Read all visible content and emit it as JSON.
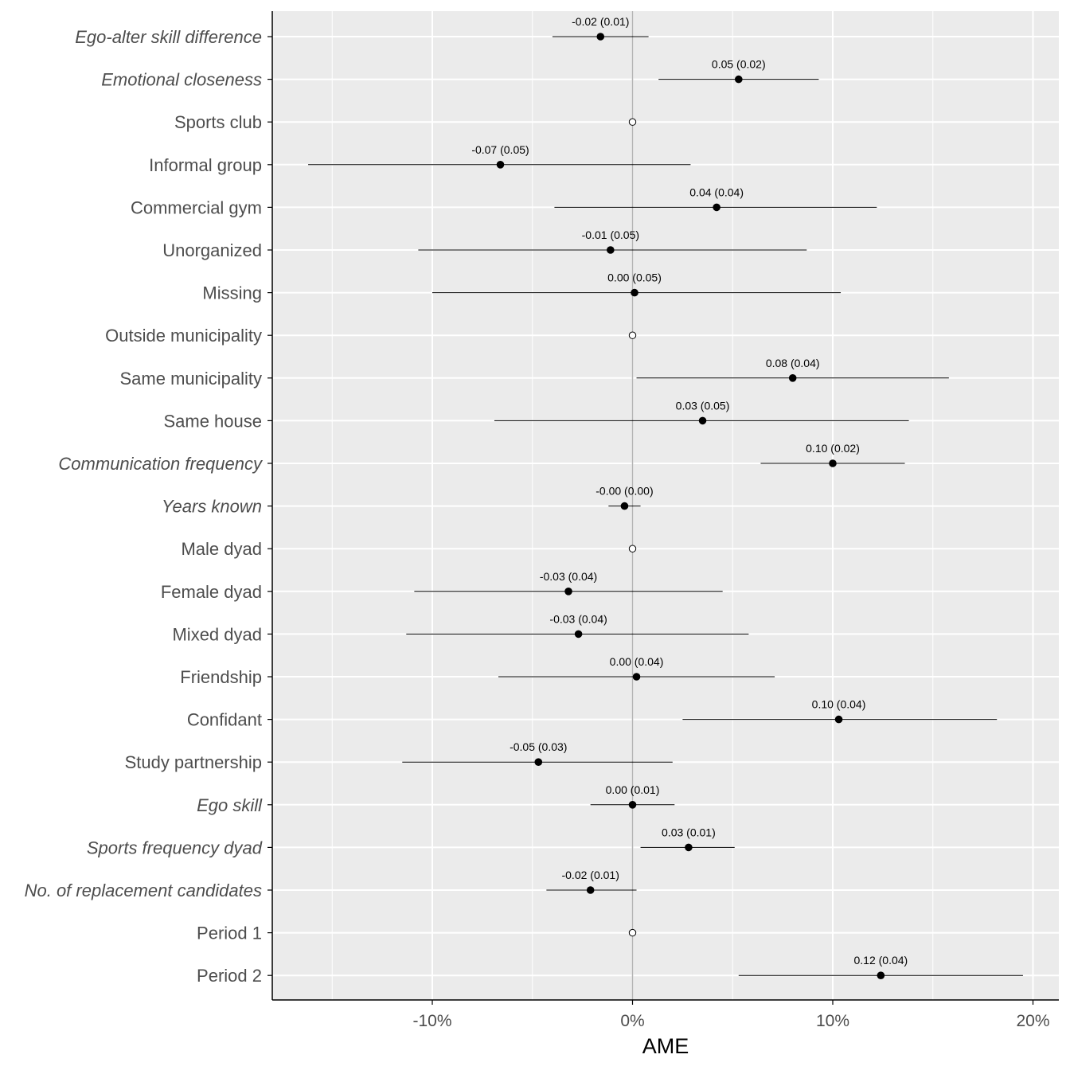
{
  "chart_data": {
    "type": "scatter",
    "subtype": "coefficient-plot",
    "title": "",
    "xlabel": "AME",
    "ylabel": "",
    "x_unit": "percent",
    "xlim": [
      -18,
      21
    ],
    "x_ticks": [
      -10,
      0,
      10,
      20
    ],
    "x_tick_labels": [
      "-10%",
      "0%",
      "10%",
      "20%"
    ],
    "grid": true,
    "reference_line": 0,
    "rows": [
      {
        "label": "Ego-alter skill difference",
        "italic": true,
        "ame": -1.6,
        "lo": -4.0,
        "hi": 0.8,
        "annotation": "-0.02 (0.01)",
        "reference": false
      },
      {
        "label": "Emotional closeness",
        "italic": true,
        "ame": 5.3,
        "lo": 1.3,
        "hi": 9.3,
        "annotation": "0.05 (0.02)",
        "reference": false
      },
      {
        "label": "Sports club",
        "italic": false,
        "ame": 0.0,
        "lo": null,
        "hi": null,
        "annotation": "",
        "reference": true
      },
      {
        "label": "Informal group",
        "italic": false,
        "ame": -6.6,
        "lo": -16.2,
        "hi": 2.9,
        "annotation": "-0.07 (0.05)",
        "reference": false
      },
      {
        "label": "Commercial gym",
        "italic": false,
        "ame": 4.2,
        "lo": -3.9,
        "hi": 12.2,
        "annotation": "0.04 (0.04)",
        "reference": false
      },
      {
        "label": "Unorganized",
        "italic": false,
        "ame": -1.1,
        "lo": -10.7,
        "hi": 8.7,
        "annotation": "-0.01 (0.05)",
        "reference": false
      },
      {
        "label": "Missing",
        "italic": false,
        "ame": 0.1,
        "lo": -10.0,
        "hi": 10.4,
        "annotation": "0.00 (0.05)",
        "reference": false
      },
      {
        "label": "Outside municipality",
        "italic": false,
        "ame": 0.0,
        "lo": null,
        "hi": null,
        "annotation": "",
        "reference": true
      },
      {
        "label": "Same municipality",
        "italic": false,
        "ame": 8.0,
        "lo": 0.2,
        "hi": 15.8,
        "annotation": "0.08 (0.04)",
        "reference": false
      },
      {
        "label": "Same house",
        "italic": false,
        "ame": 3.5,
        "lo": -6.9,
        "hi": 13.8,
        "annotation": "0.03 (0.05)",
        "reference": false
      },
      {
        "label": "Communication frequency",
        "italic": true,
        "ame": 10.0,
        "lo": 6.4,
        "hi": 13.6,
        "annotation": "0.10 (0.02)",
        "reference": false
      },
      {
        "label": "Years known",
        "italic": true,
        "ame": -0.4,
        "lo": -1.2,
        "hi": 0.4,
        "annotation": "-0.00 (0.00)",
        "reference": false
      },
      {
        "label": "Male dyad",
        "italic": false,
        "ame": 0.0,
        "lo": null,
        "hi": null,
        "annotation": "",
        "reference": true
      },
      {
        "label": "Female dyad",
        "italic": false,
        "ame": -3.2,
        "lo": -10.9,
        "hi": 4.5,
        "annotation": "-0.03 (0.04)",
        "reference": false
      },
      {
        "label": "Mixed dyad",
        "italic": false,
        "ame": -2.7,
        "lo": -11.3,
        "hi": 5.8,
        "annotation": "-0.03 (0.04)",
        "reference": false
      },
      {
        "label": "Friendship",
        "italic": false,
        "ame": 0.2,
        "lo": -6.7,
        "hi": 7.1,
        "annotation": "0.00 (0.04)",
        "reference": false
      },
      {
        "label": "Confidant",
        "italic": false,
        "ame": 10.3,
        "lo": 2.5,
        "hi": 18.2,
        "annotation": "0.10 (0.04)",
        "reference": false
      },
      {
        "label": "Study partnership",
        "italic": false,
        "ame": -4.7,
        "lo": -11.5,
        "hi": 2.0,
        "annotation": "-0.05 (0.03)",
        "reference": false
      },
      {
        "label": "Ego skill",
        "italic": true,
        "ame": 0.0,
        "lo": -2.1,
        "hi": 2.1,
        "annotation": "0.00 (0.01)",
        "reference": false
      },
      {
        "label": "Sports frequency dyad",
        "italic": true,
        "ame": 2.8,
        "lo": 0.4,
        "hi": 5.1,
        "annotation": "0.03 (0.01)",
        "reference": false
      },
      {
        "label": "No. of replacement candidates",
        "italic": true,
        "ame": -2.1,
        "lo": -4.3,
        "hi": 0.2,
        "annotation": "-0.02 (0.01)",
        "reference": false
      },
      {
        "label": "Period 1",
        "italic": false,
        "ame": 0.0,
        "lo": null,
        "hi": null,
        "annotation": "",
        "reference": true
      },
      {
        "label": "Period 2",
        "italic": false,
        "ame": 12.4,
        "lo": 5.3,
        "hi": 19.5,
        "annotation": "0.12 (0.04)",
        "reference": false
      }
    ],
    "colors": {
      "panel_background": "#ebebeb",
      "grid": "#ffffff",
      "reference_line": "#b3b3b3",
      "point": "#000000",
      "reference_point_fill": "#ffffff",
      "axis": "#000000",
      "tick_label": "#4d4d4d"
    }
  }
}
